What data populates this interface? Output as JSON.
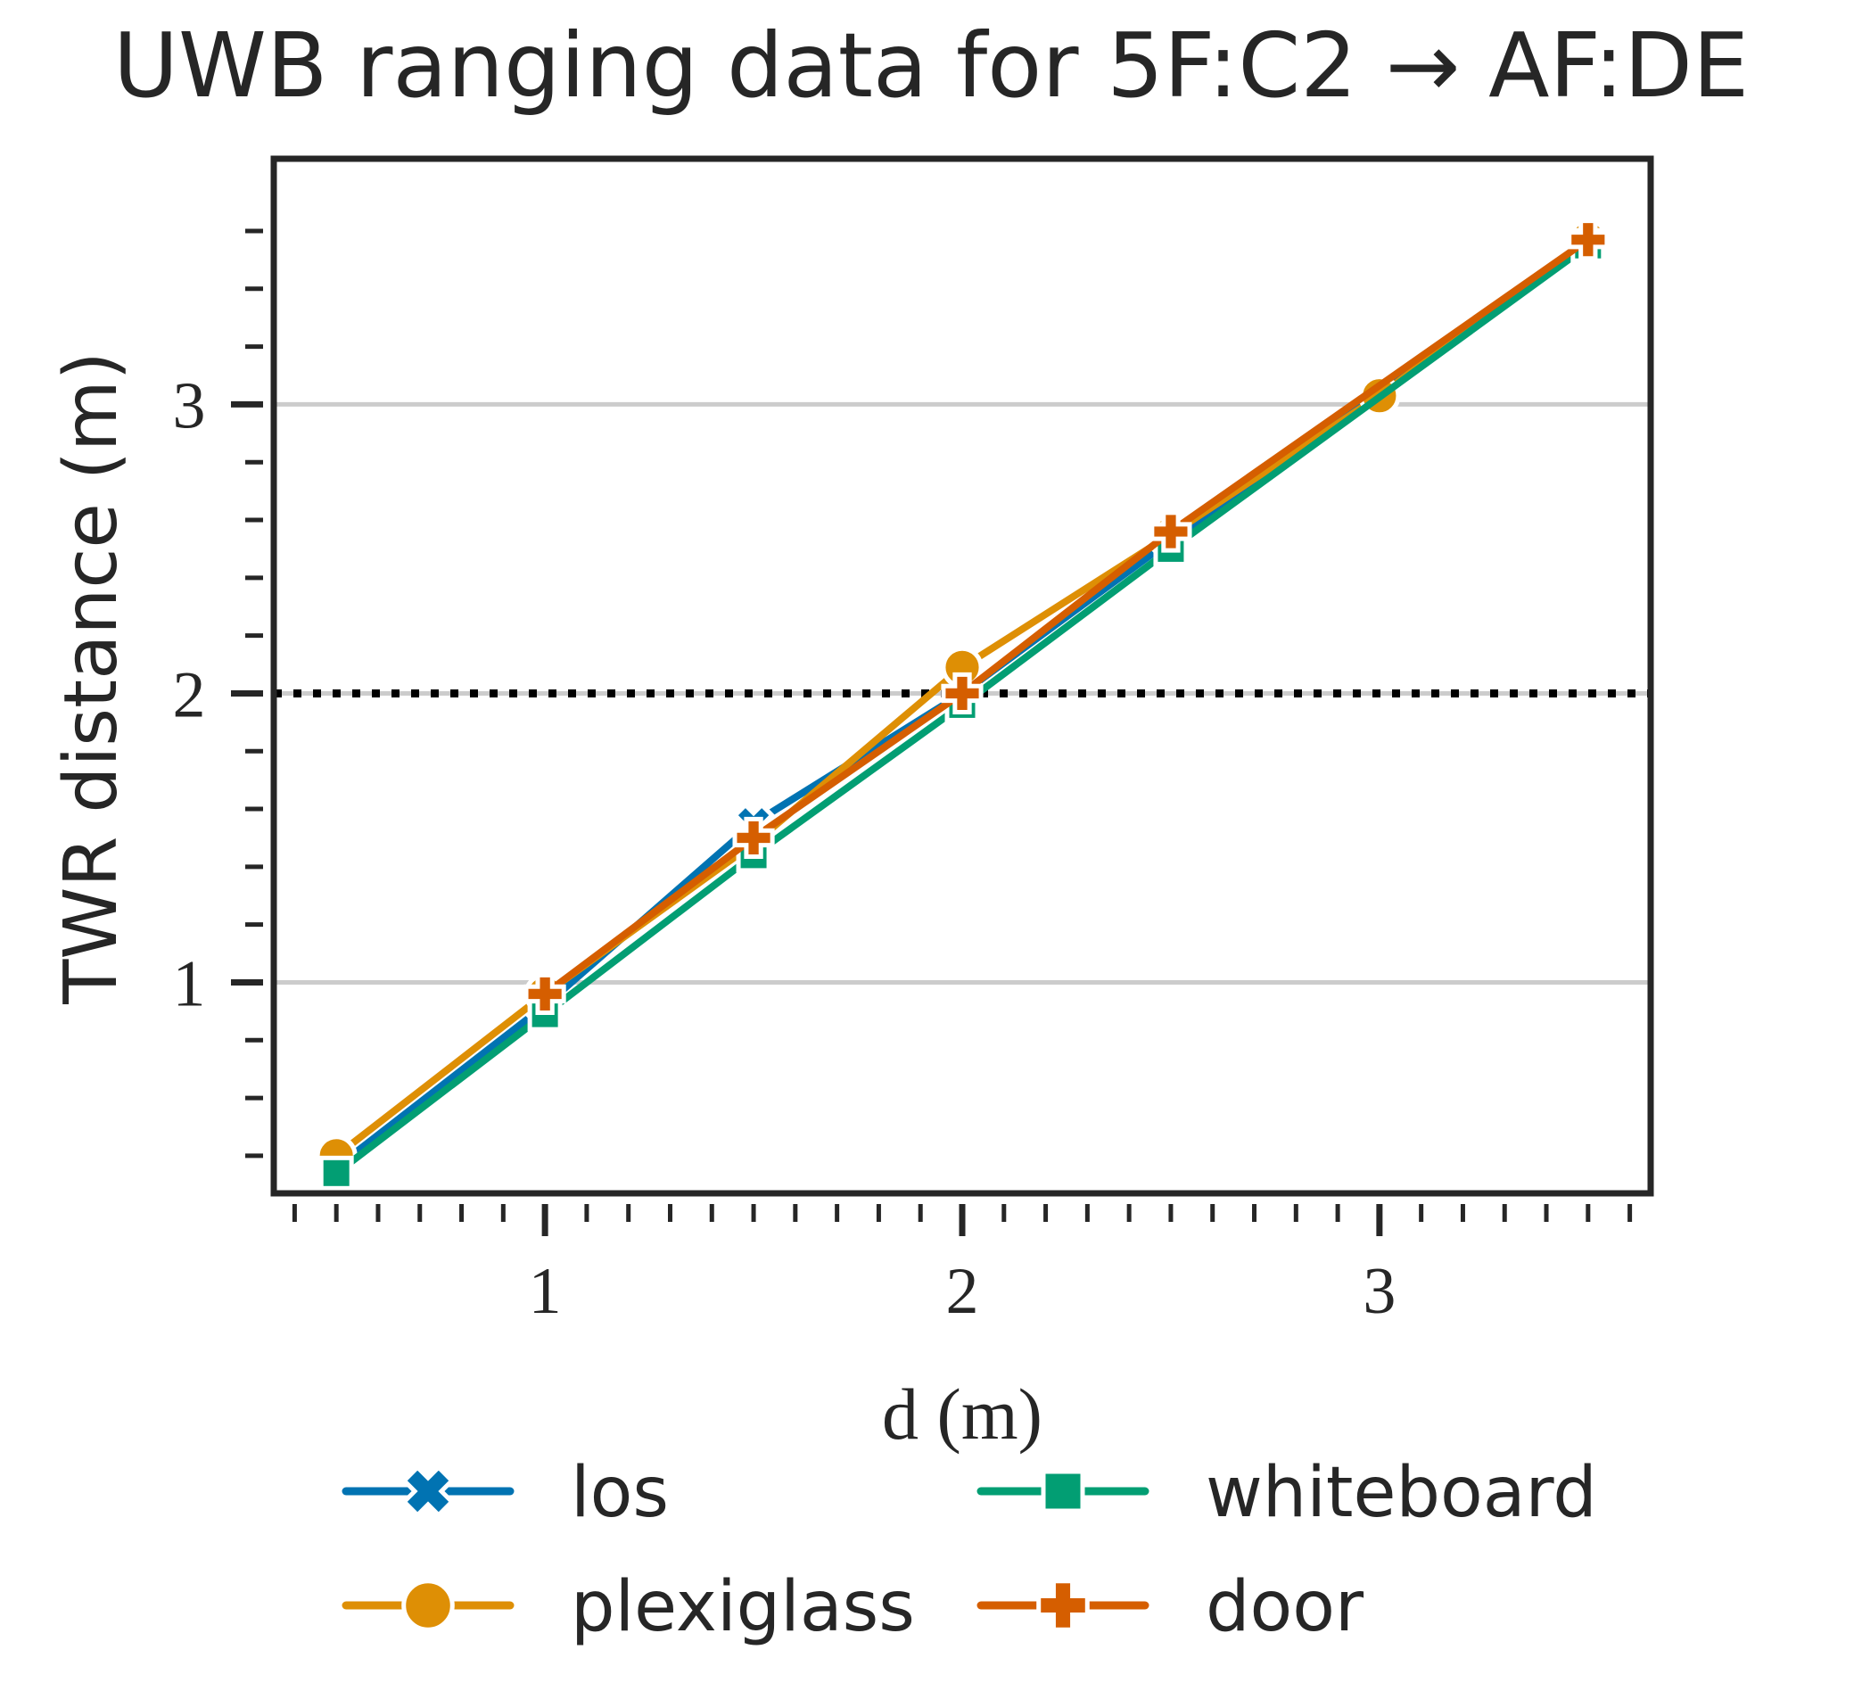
{
  "chart_data": {
    "type": "line",
    "title": "UWB ranging data for 5F:C2 → AF:DE",
    "xlabel": "d (m)",
    "ylabel": "TWR distance (m)",
    "xlim": [
      0.35,
      3.65
    ],
    "ylim": [
      0.27,
      3.85
    ],
    "xticks": [
      1,
      2,
      3
    ],
    "xtick_labels": [
      "1",
      "2",
      "3"
    ],
    "yticks": [
      1,
      2,
      3
    ],
    "ytick_labels": [
      "1",
      "2",
      "3"
    ],
    "grid": "horizontal",
    "reference_line": {
      "y": 2,
      "style": "dotted",
      "color": "#000000"
    },
    "legend_position": "bottom",
    "series": [
      {
        "name": "los",
        "color": "#0173b2",
        "marker": "x",
        "x": [
          0.5,
          1.0,
          1.5,
          2.0,
          2.5,
          3.5
        ],
        "y": [
          0.36,
          0.92,
          1.55,
          2.0,
          2.53,
          3.56
        ]
      },
      {
        "name": "plexiglass",
        "color": "#de8f05",
        "marker": "circle",
        "x": [
          0.5,
          1.0,
          1.5,
          2.0,
          2.5,
          3.0,
          3.5
        ],
        "y": [
          0.4,
          0.96,
          1.48,
          2.09,
          2.55,
          3.03,
          3.57
        ]
      },
      {
        "name": "whiteboard",
        "color": "#029e73",
        "marker": "square",
        "x": [
          0.5,
          1.0,
          1.5,
          2.0,
          2.5,
          3.5
        ],
        "y": [
          0.34,
          0.89,
          1.44,
          1.96,
          2.5,
          3.55
        ]
      },
      {
        "name": "door",
        "color": "#d55e00",
        "marker": "plus",
        "x": [
          1.0,
          1.5,
          2.0,
          2.5,
          3.5
        ],
        "y": [
          0.96,
          1.5,
          2.0,
          2.56,
          3.57
        ]
      }
    ]
  }
}
